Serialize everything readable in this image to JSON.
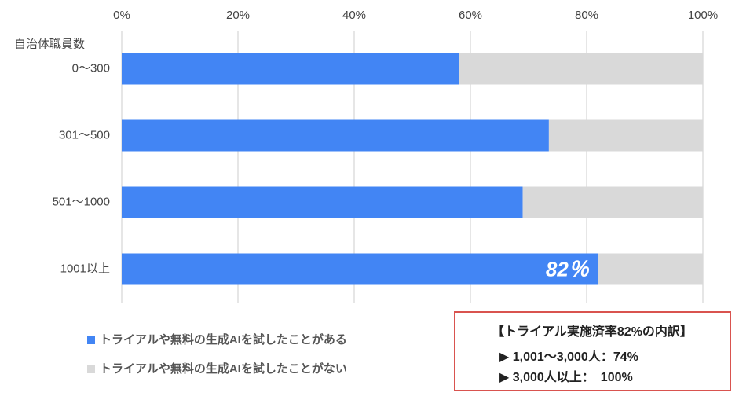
{
  "chart_data": {
    "type": "stacked-bar-horizontal",
    "ylabel": "自治体職員数",
    "categories": [
      "0〜300",
      "301〜500",
      "501〜1000",
      "1001以上"
    ],
    "series": [
      {
        "name": "トライアルや無料の生成AIを試したことがある",
        "color": "#4285f4",
        "values": [
          58,
          73.5,
          69,
          82
        ],
        "value_labels": [
          null,
          null,
          null,
          "82％"
        ]
      },
      {
        "name": "トライアルや無料の生成AIを試したことがない",
        "color": "#d9d9d9",
        "values": [
          42,
          26.5,
          31,
          18
        ]
      }
    ],
    "xlim": [
      0,
      100
    ],
    "xticks": [
      {
        "value": 0,
        "label": "0%"
      },
      {
        "value": 20,
        "label": "20%"
      },
      {
        "value": 40,
        "label": "40%"
      },
      {
        "value": 60,
        "label": "60%"
      },
      {
        "value": 80,
        "label": "80%"
      },
      {
        "value": 100,
        "label": "100%"
      }
    ],
    "grid": true,
    "annotation": {
      "title": "【トライアル実施済率82%の内訳】",
      "lines": [
        "▶ 1,001〜3,000人：74%",
        "▶ 3,000人以上：　100%"
      ]
    }
  }
}
